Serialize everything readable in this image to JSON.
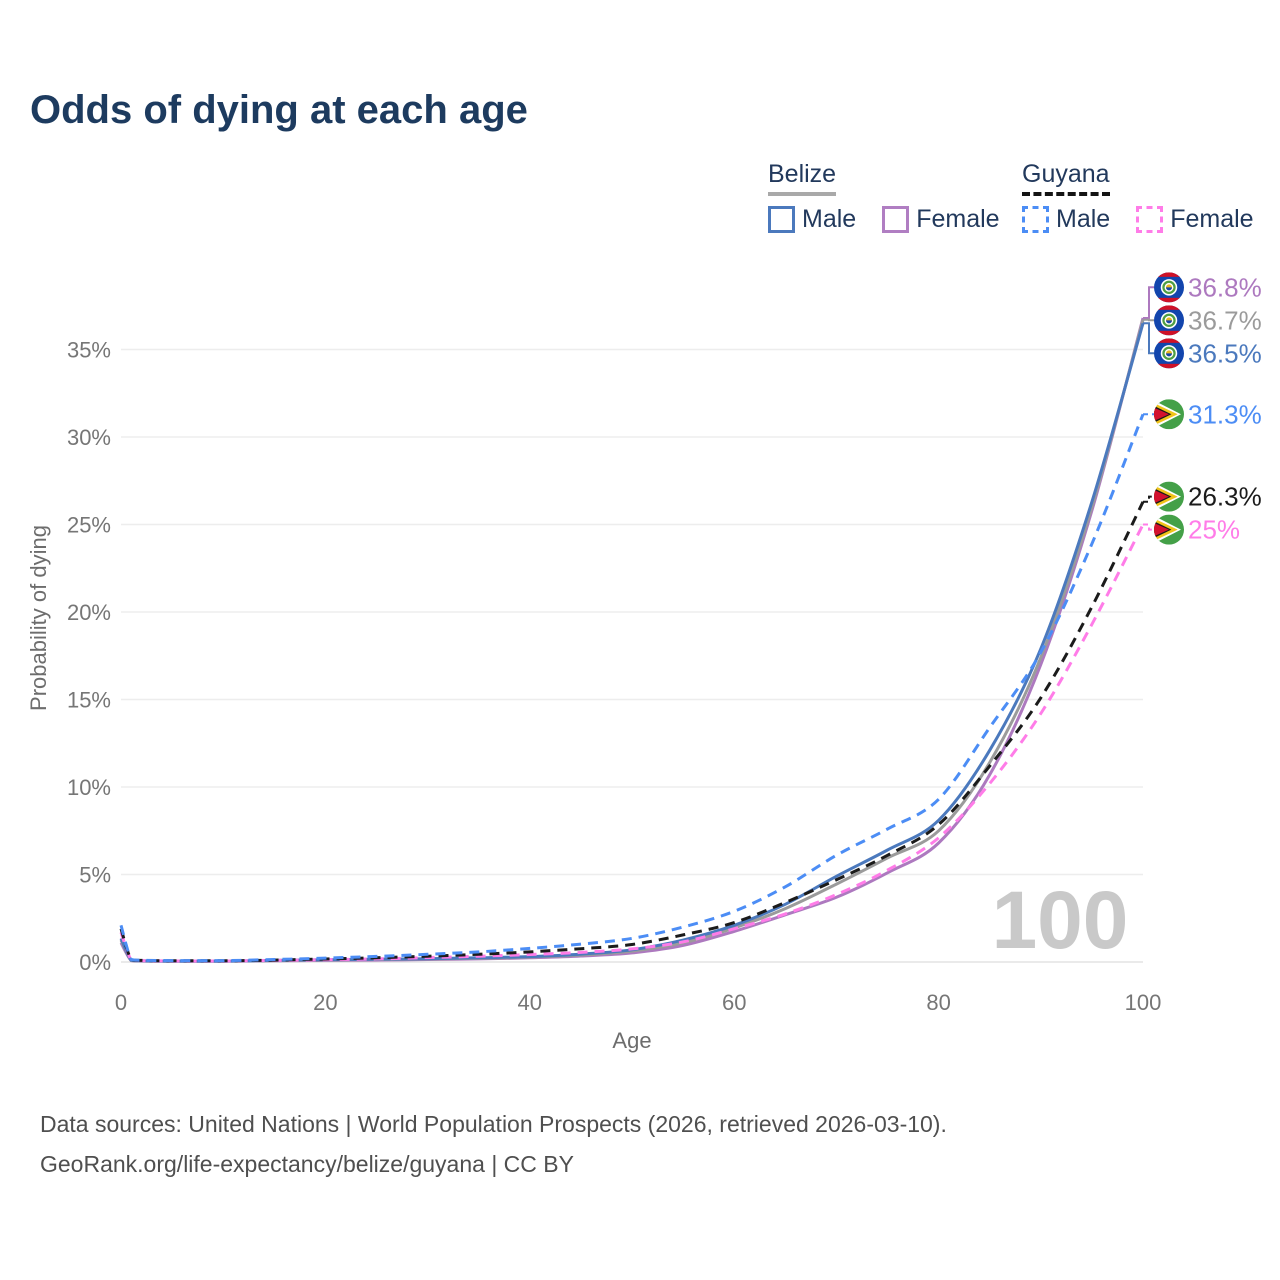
{
  "title": "Odds of dying at each age",
  "legend": {
    "groups": [
      {
        "label": "Belize",
        "line_style": "solid",
        "underline_color": "#a9a9a9",
        "items": [
          {
            "label": "Male",
            "color": "#4b79bd",
            "dashed": false
          },
          {
            "label": "Female",
            "color": "#b07ec2",
            "dashed": false
          }
        ]
      },
      {
        "label": "Guyana",
        "line_style": "dashed",
        "underline_color": "#141414",
        "items": [
          {
            "label": "Male",
            "color": "#4c8df5",
            "dashed": true
          },
          {
            "label": "Female",
            "color": "#ff7ce8",
            "dashed": true
          }
        ]
      }
    ]
  },
  "axes": {
    "x": {
      "title": "Age",
      "ticks": [
        {
          "value": 0,
          "label": "0"
        },
        {
          "value": 20,
          "label": "20"
        },
        {
          "value": 40,
          "label": "40"
        },
        {
          "value": 60,
          "label": "60"
        },
        {
          "value": 80,
          "label": "80"
        },
        {
          "value": 100,
          "label": "100"
        }
      ]
    },
    "y": {
      "title": "Probability of dying",
      "ticks": [
        {
          "value": 0,
          "label": "0%"
        },
        {
          "value": 5,
          "label": "5%"
        },
        {
          "value": 10,
          "label": "10%"
        },
        {
          "value": 15,
          "label": "15%"
        },
        {
          "value": 20,
          "label": "20%"
        },
        {
          "value": 25,
          "label": "25%"
        },
        {
          "value": 30,
          "label": "30%"
        },
        {
          "value": 35,
          "label": "35%"
        }
      ]
    }
  },
  "hover_age_indicator": "100",
  "chart_data": {
    "type": "line",
    "title": "Odds of dying at each age",
    "xlabel": "Age",
    "ylabel": "Probability of dying",
    "xlim": [
      0,
      100
    ],
    "ylim": [
      0,
      37
    ],
    "grid": "horizontal",
    "legend_position": "top-right",
    "x": [
      0,
      1,
      2,
      5,
      10,
      15,
      20,
      25,
      30,
      35,
      40,
      45,
      50,
      55,
      60,
      65,
      70,
      75,
      80,
      85,
      90,
      95,
      100
    ],
    "series": [
      {
        "name": "Belize Female",
        "country": "Belize",
        "sex": "Female",
        "color": "#ad79bf",
        "dashed": false,
        "flag": "belize",
        "end_label": "36.8%",
        "values": [
          1.1,
          0.08,
          0.05,
          0.04,
          0.04,
          0.07,
          0.09,
          0.11,
          0.14,
          0.18,
          0.24,
          0.34,
          0.52,
          0.95,
          1.75,
          2.7,
          3.7,
          5.1,
          6.8,
          10.7,
          17.0,
          25.8,
          36.8
        ]
      },
      {
        "name": "Belize",
        "country": "Belize",
        "sex": "Both",
        "color": "#9b9b9b",
        "dashed": false,
        "flag": "belize",
        "end_label": "36.7%",
        "values": [
          1.25,
          0.09,
          0.06,
          0.05,
          0.05,
          0.08,
          0.11,
          0.14,
          0.17,
          0.21,
          0.28,
          0.4,
          0.62,
          1.1,
          1.95,
          3.05,
          4.45,
          5.95,
          7.5,
          11.4,
          17.4,
          26.0,
          36.7
        ]
      },
      {
        "name": "Belize Male",
        "country": "Belize",
        "sex": "Male",
        "color": "#4b79bd",
        "dashed": false,
        "flag": "belize",
        "end_label": "36.5%",
        "values": [
          1.35,
          0.1,
          0.07,
          0.05,
          0.05,
          0.09,
          0.13,
          0.16,
          0.19,
          0.24,
          0.31,
          0.45,
          0.7,
          1.25,
          2.1,
          3.3,
          4.9,
          6.4,
          8.1,
          12.1,
          17.9,
          26.3,
          36.5
        ]
      },
      {
        "name": "Guyana Female",
        "country": "Guyana",
        "sex": "Female",
        "color": "#ff7ce8",
        "dashed": true,
        "flag": "guyana",
        "end_label": "25%",
        "values": [
          1.7,
          0.12,
          0.08,
          0.06,
          0.06,
          0.09,
          0.13,
          0.18,
          0.25,
          0.33,
          0.43,
          0.55,
          0.75,
          1.15,
          1.9,
          2.75,
          3.85,
          5.25,
          7.1,
          10.2,
          14.2,
          19.3,
          25.0
        ]
      },
      {
        "name": "Guyana",
        "country": "Guyana",
        "sex": "Both",
        "color": "#1b1b1b",
        "dashed": true,
        "flag": "guyana",
        "end_label": "26.3%",
        "values": [
          1.9,
          0.13,
          0.09,
          0.07,
          0.07,
          0.11,
          0.17,
          0.24,
          0.33,
          0.44,
          0.58,
          0.76,
          1.0,
          1.55,
          2.25,
          3.4,
          4.7,
          6.1,
          7.85,
          11.2,
          15.1,
          20.3,
          26.3
        ]
      },
      {
        "name": "Guyana Male",
        "country": "Guyana",
        "sex": "Male",
        "color": "#4c8df5",
        "dashed": true,
        "flag": "guyana",
        "end_label": "31.3%",
        "values": [
          2.1,
          0.15,
          0.1,
          0.08,
          0.08,
          0.14,
          0.22,
          0.32,
          0.44,
          0.58,
          0.78,
          1.02,
          1.35,
          2.0,
          2.9,
          4.3,
          6.1,
          7.6,
          9.3,
          13.4,
          17.7,
          23.9,
          31.3
        ]
      }
    ]
  },
  "footer": {
    "line1": "Data sources: United Nations | World Population Prospects (2026, retrieved 2026-03-10).",
    "line2": "GeoRank.org/life-expectancy/belize/guyana | CC BY"
  },
  "colors": {
    "title": "#1d3b5f",
    "tick_label": "#767676",
    "axis_title": "#6d6d6d",
    "gridline": "#ededed",
    "zero_line": "#e3e3e3",
    "watermark": "#c9c9c9",
    "footer": "#4f4f4f"
  }
}
